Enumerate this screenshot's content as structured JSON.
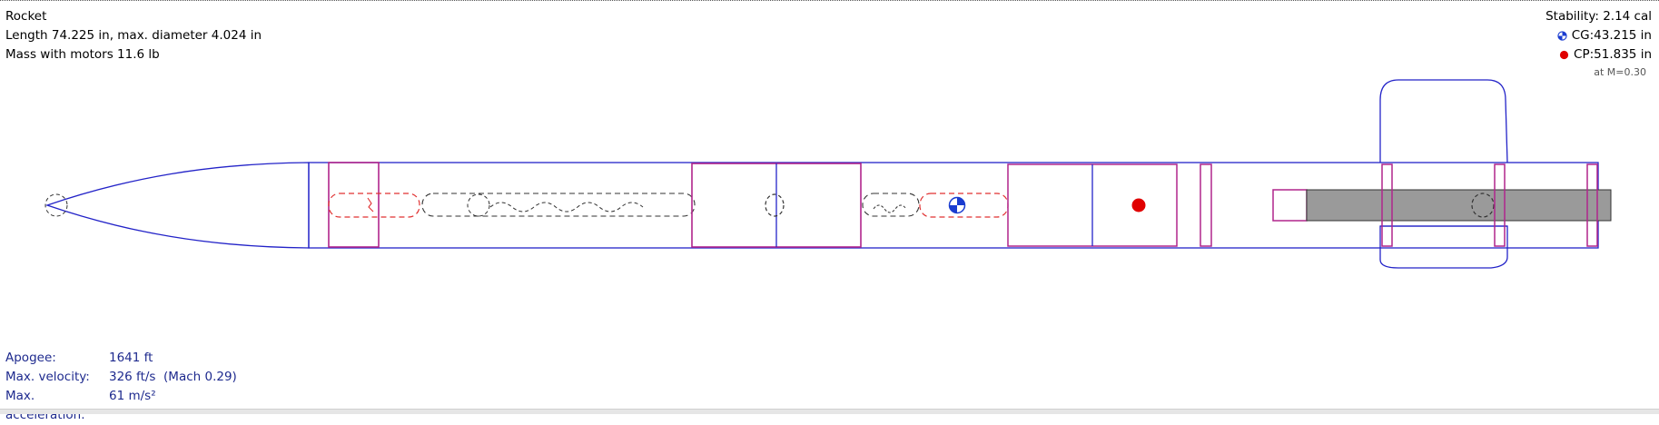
{
  "design": {
    "name": "Rocket",
    "dimensions": "Length 74.225 in, max. diameter 4.024 in",
    "mass": "Mass with motors 11.6 lb"
  },
  "stability": {
    "label": "Stability:",
    "value": "2.14 cal",
    "cg": "CG:43.215 in",
    "cp": "CP:51.835 in",
    "mach": "at M=0.30"
  },
  "flight": {
    "apogee_label": "Apogee:",
    "apogee_value": "1641 ft",
    "velocity_label": "Max. velocity:",
    "velocity_value": "326 ft/s  (Mach 0.29)",
    "acceleration_label": "Max. acceleration:",
    "acceleration_value": "61 m/s²"
  },
  "colors": {
    "body_outline": "#2323c8",
    "internal_component": "#b0258c",
    "recovery": "#e03030",
    "shock_cord": "#333333",
    "motor": "#9a9a9a",
    "cp_marker": "#e00000",
    "cg_marker": "#1a3cd0",
    "flight_text": "#1e2a8e"
  }
}
